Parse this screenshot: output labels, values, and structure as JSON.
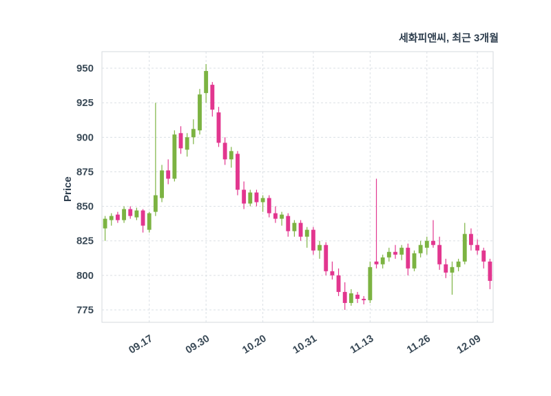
{
  "header": {
    "title": "세화피앤씨, 최근 3개월"
  },
  "chart_data": {
    "type": "candlestick",
    "title": "세화피앤씨, 최근 3개월",
    "ylabel": "Price",
    "ylim": [
      766,
      962
    ],
    "yticks": [
      775,
      800,
      825,
      850,
      875,
      900,
      925,
      950
    ],
    "xtick_labels": [
      "09.17",
      "09.30",
      "10.20",
      "10.31",
      "11.13",
      "11.26",
      "12.09"
    ],
    "xtick_indices": [
      7,
      16,
      25,
      33,
      42,
      51,
      59
    ],
    "grid": true,
    "legend": "none",
    "colors": {
      "up": "#7cb342",
      "down": "#e2368f",
      "grid": "#dadfe4",
      "axis_text": "#3a4a57",
      "title": "#2e3e4e",
      "border": "#d4d9de",
      "background": "#ffffff"
    },
    "candles": [
      [
        834,
        843,
        825,
        841
      ],
      [
        840,
        845,
        836,
        843
      ],
      [
        844,
        846,
        838,
        840
      ],
      [
        840,
        850,
        838,
        848
      ],
      [
        848,
        850,
        841,
        843
      ],
      [
        842,
        849,
        840,
        847
      ],
      [
        847,
        848,
        831,
        836
      ],
      [
        833,
        846,
        831,
        845
      ],
      [
        846,
        925,
        843,
        858
      ],
      [
        856,
        880,
        853,
        876
      ],
      [
        876,
        884,
        866,
        870
      ],
      [
        870,
        905,
        868,
        902
      ],
      [
        903,
        908,
        888,
        892
      ],
      [
        891,
        903,
        886,
        900
      ],
      [
        900,
        913,
        895,
        906
      ],
      [
        905,
        935,
        902,
        931
      ],
      [
        932,
        953,
        925,
        948
      ],
      [
        938,
        940,
        915,
        920
      ],
      [
        918,
        922,
        893,
        896
      ],
      [
        896,
        900,
        880,
        884
      ],
      [
        884,
        893,
        878,
        890
      ],
      [
        888,
        890,
        858,
        862
      ],
      [
        862,
        868,
        848,
        852
      ],
      [
        852,
        862,
        850,
        860
      ],
      [
        860,
        862,
        850,
        853
      ],
      [
        853,
        858,
        846,
        856
      ],
      [
        856,
        858,
        842,
        845
      ],
      [
        845,
        850,
        838,
        841
      ],
      [
        841,
        846,
        836,
        844
      ],
      [
        843,
        845,
        828,
        832
      ],
      [
        832,
        840,
        828,
        838
      ],
      [
        838,
        840,
        825,
        828
      ],
      [
        828,
        835,
        820,
        833
      ],
      [
        833,
        835,
        815,
        818
      ],
      [
        818,
        825,
        812,
        822
      ],
      [
        822,
        824,
        800,
        803
      ],
      [
        803,
        810,
        797,
        800
      ],
      [
        800,
        805,
        785,
        788
      ],
      [
        788,
        795,
        775,
        780
      ],
      [
        780,
        790,
        778,
        787
      ],
      [
        786,
        788,
        780,
        783
      ],
      [
        783,
        785,
        779,
        782
      ],
      [
        782,
        810,
        780,
        806
      ],
      [
        810,
        870,
        805,
        808
      ],
      [
        808,
        815,
        805,
        813
      ],
      [
        813,
        820,
        810,
        817
      ],
      [
        817,
        822,
        812,
        815
      ],
      [
        815,
        822,
        811,
        820
      ],
      [
        820,
        823,
        800,
        805
      ],
      [
        805,
        818,
        803,
        816
      ],
      [
        816,
        825,
        813,
        822
      ],
      [
        820,
        828,
        815,
        825
      ],
      [
        825,
        840,
        820,
        822
      ],
      [
        822,
        828,
        804,
        808
      ],
      [
        808,
        812,
        798,
        802
      ],
      [
        802,
        810,
        786,
        806
      ],
      [
        806,
        812,
        803,
        810
      ],
      [
        810,
        838,
        808,
        830
      ],
      [
        830,
        834,
        818,
        822
      ],
      [
        822,
        826,
        815,
        818
      ],
      [
        818,
        820,
        805,
        810
      ],
      [
        810,
        812,
        790,
        796
      ]
    ]
  }
}
